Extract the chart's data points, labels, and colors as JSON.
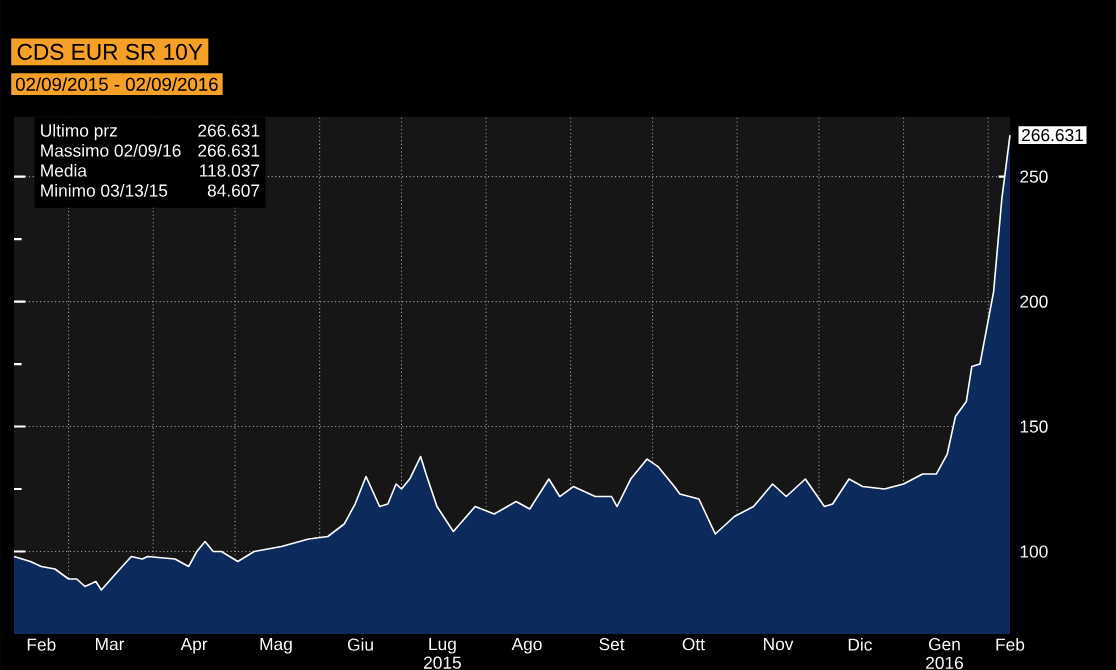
{
  "chart_data": {
    "type": "area",
    "title": "CDS EUR SR 10Y",
    "subtitle": "02/09/2015 - 02/09/2016",
    "x": [
      "2015-02-09",
      "2015-02-15",
      "2015-02-19",
      "2015-02-24",
      "2015-03-01",
      "2015-03-04",
      "2015-03-07",
      "2015-03-11",
      "2015-03-13",
      "2015-03-19",
      "2015-03-24",
      "2015-03-28",
      "2015-03-30",
      "2015-04-09",
      "2015-04-14",
      "2015-04-17",
      "2015-04-20",
      "2015-04-23",
      "2015-04-26",
      "2015-05-02",
      "2015-05-08",
      "2015-05-18",
      "2015-05-28",
      "2015-06-04",
      "2015-06-10",
      "2015-06-14",
      "2015-06-18",
      "2015-06-23",
      "2015-06-26",
      "2015-06-29",
      "2015-07-01",
      "2015-07-04",
      "2015-07-08",
      "2015-07-10",
      "2015-07-14",
      "2015-07-20",
      "2015-07-28",
      "2015-08-04",
      "2015-08-12",
      "2015-08-17",
      "2015-08-24",
      "2015-08-28",
      "2015-09-02",
      "2015-09-10",
      "2015-09-16",
      "2015-09-18",
      "2015-09-23",
      "2015-09-29",
      "2015-10-03",
      "2015-10-09",
      "2015-10-11",
      "2015-10-18",
      "2015-10-24",
      "2015-10-31",
      "2015-11-07",
      "2015-11-14",
      "2015-11-19",
      "2015-11-26",
      "2015-12-03",
      "2015-12-06",
      "2015-12-12",
      "2015-12-17",
      "2015-12-25",
      "2016-01-01",
      "2016-01-08",
      "2016-01-13",
      "2016-01-17",
      "2016-01-20",
      "2016-01-24",
      "2016-01-26",
      "2016-01-29",
      "2016-02-03",
      "2016-02-06",
      "2016-02-09"
    ],
    "series": [
      {
        "color": "#0d2a5c",
        "values": [
          98,
          96,
          94,
          93,
          89,
          89,
          86,
          88,
          84.607,
          92,
          98,
          97,
          98,
          97,
          94,
          100,
          104,
          100,
          100,
          96,
          100,
          102,
          105,
          106,
          111,
          119,
          130,
          118,
          119,
          127,
          125,
          129,
          138,
          131,
          118,
          108,
          118,
          115,
          120,
          117,
          129,
          122,
          126,
          122,
          122,
          118,
          129,
          137,
          134,
          126,
          123,
          121,
          107,
          114,
          118,
          127,
          122,
          129,
          118,
          119,
          129,
          126,
          125,
          127,
          131,
          131,
          139,
          154,
          160,
          174,
          175,
          204,
          241,
          266.631
        ]
      }
    ],
    "xlim": [
      "2015-02-09",
      "2016-02-09"
    ],
    "xticks": [
      {
        "value": "2015-02-19",
        "label": "Feb"
      },
      {
        "value": "2015-03-01",
        "label": null
      },
      {
        "value": "2015-03-16",
        "label": "Mar"
      },
      {
        "value": "2015-04-01",
        "label": null
      },
      {
        "value": "2015-04-16",
        "label": "Apr"
      },
      {
        "value": "2015-05-01",
        "label": null
      },
      {
        "value": "2015-05-16",
        "label": "Mag"
      },
      {
        "value": "2015-06-01",
        "label": null
      },
      {
        "value": "2015-06-16",
        "label": "Giu"
      },
      {
        "value": "2015-07-01",
        "label": null
      },
      {
        "value": "2015-07-16",
        "label": "Lug 2015"
      },
      {
        "value": "2015-08-01",
        "label": null
      },
      {
        "value": "2015-08-16",
        "label": "Ago"
      },
      {
        "value": "2015-09-01",
        "label": null
      },
      {
        "value": "2015-09-16",
        "label": "Set"
      },
      {
        "value": "2015-10-01",
        "label": null
      },
      {
        "value": "2015-10-16",
        "label": "Ott"
      },
      {
        "value": "2015-11-01",
        "label": null
      },
      {
        "value": "2015-11-16",
        "label": "Nov"
      },
      {
        "value": "2015-12-01",
        "label": null
      },
      {
        "value": "2015-12-16",
        "label": "Dic"
      },
      {
        "value": "2016-01-01",
        "label": null
      },
      {
        "value": "2016-01-16",
        "label": "Gen 2016"
      },
      {
        "value": "2016-02-01",
        "label": null
      },
      {
        "value": "2016-02-09",
        "label": "Feb"
      }
    ],
    "ylim": [
      67,
      274
    ],
    "yticks": [
      {
        "value": 75,
        "label": null
      },
      100,
      {
        "value": 125,
        "label": null
      },
      150,
      {
        "value": 175,
        "label": null
      },
      200,
      {
        "value": 225,
        "label": null
      },
      250
    ],
    "grid": true,
    "annotations": [
      "Ultimo prz",
      "266.631",
      "Massimo 02/09/16",
      "266.631",
      "Media",
      "118.037",
      "Minimo 03/13/15",
      "84.607",
      {
        "text": "266.631",
        "x": "2016-02-09",
        "y": 266.631
      }
    ]
  }
}
